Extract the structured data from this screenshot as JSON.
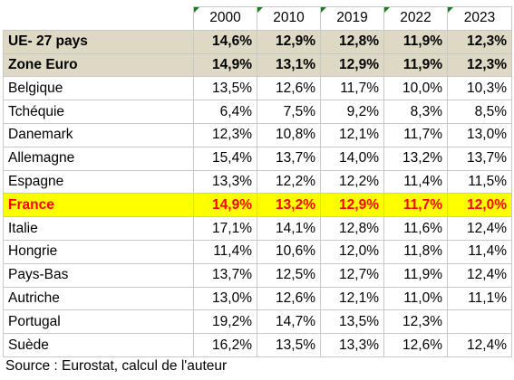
{
  "columns": [
    "2000",
    "2010",
    "2019",
    "2022",
    "2023"
  ],
  "rows": [
    {
      "label": "UE- 27 pays",
      "values": [
        "14,6%",
        "12,9%",
        "12,8%",
        "11,9%",
        "12,3%"
      ],
      "style": "agg"
    },
    {
      "label": "Zone Euro",
      "values": [
        "14,9%",
        "13,1%",
        "12,9%",
        "11,9%",
        "12,3%"
      ],
      "style": "agg"
    },
    {
      "label": "Belgique",
      "values": [
        "13,5%",
        "12,6%",
        "11,7%",
        "10,0%",
        "10,3%"
      ],
      "style": "normal"
    },
    {
      "label": "Tchéquie",
      "values": [
        "6,4%",
        "7,5%",
        "9,2%",
        "8,3%",
        "8,5%"
      ],
      "style": "normal"
    },
    {
      "label": "Danemark",
      "values": [
        "12,3%",
        "10,8%",
        "12,1%",
        "11,7%",
        "13,0%"
      ],
      "style": "normal"
    },
    {
      "label": "Allemagne",
      "values": [
        "15,4%",
        "13,7%",
        "14,0%",
        "13,2%",
        "13,7%"
      ],
      "style": "normal"
    },
    {
      "label": "Espagne",
      "values": [
        "13,3%",
        "12,2%",
        "12,2%",
        "11,4%",
        "11,5%"
      ],
      "style": "normal"
    },
    {
      "label": "France",
      "values": [
        "14,9%",
        "13,2%",
        "12,9%",
        "11,7%",
        "12,0%"
      ],
      "style": "highlight"
    },
    {
      "label": "Italie",
      "values": [
        "17,1%",
        "14,1%",
        "12,8%",
        "11,6%",
        "12,4%"
      ],
      "style": "normal"
    },
    {
      "label": "Hongrie",
      "values": [
        "11,4%",
        "10,6%",
        "12,0%",
        "11,8%",
        "11,4%"
      ],
      "style": "normal"
    },
    {
      "label": "Pays-Bas",
      "values": [
        "13,7%",
        "12,5%",
        "12,7%",
        "11,9%",
        "12,4%"
      ],
      "style": "normal"
    },
    {
      "label": "Autriche",
      "values": [
        "13,0%",
        "12,6%",
        "12,1%",
        "11,0%",
        "11,1%"
      ],
      "style": "normal"
    },
    {
      "label": "Portugal",
      "values": [
        "19,2%",
        "14,7%",
        "13,5%",
        "12,3%",
        ""
      ],
      "style": "normal"
    },
    {
      "label": "Suède",
      "values": [
        "16,2%",
        "13,5%",
        "13,3%",
        "12,6%",
        "12,4%"
      ],
      "style": "normal"
    }
  ],
  "source": "Source : Eurostat, calcul de l'auteur",
  "colors": {
    "aggregate_fill": "#ddd9c4",
    "highlight_fill": "#ffff00",
    "highlight_text": "#ff0000",
    "comment_marker": "#1f7a1f",
    "gridline": "#c8c8c8"
  }
}
